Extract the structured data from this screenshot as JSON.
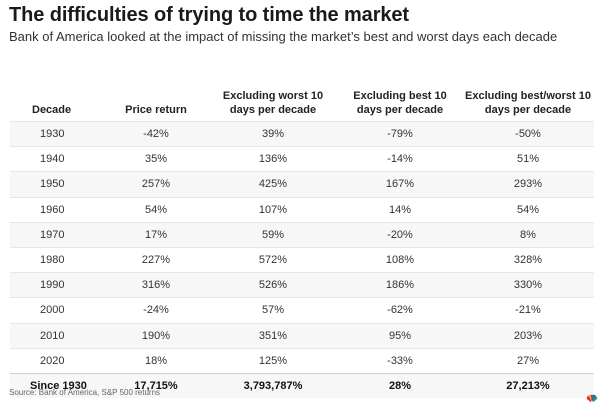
{
  "header": {
    "title": "The difficulties of trying to time the market",
    "subtitle": "Bank of America looked at the impact of missing the market’s best and worst days each decade"
  },
  "table": {
    "columns": [
      "Decade",
      "Price return",
      "Excluding worst 10 days per decade",
      "Excluding best 10 days per decade",
      "Excluding best/worst 10 days per decade"
    ],
    "rows": [
      [
        "1930",
        "-42%",
        "39%",
        "-79%",
        "-50%"
      ],
      [
        "1940",
        "35%",
        "136%",
        "-14%",
        "51%"
      ],
      [
        "1950",
        "257%",
        "425%",
        "167%",
        "293%"
      ],
      [
        "1960",
        "54%",
        "107%",
        "14%",
        "54%"
      ],
      [
        "1970",
        "17%",
        "59%",
        "-20%",
        "8%"
      ],
      [
        "1980",
        "227%",
        "572%",
        "108%",
        "328%"
      ],
      [
        "1990",
        "316%",
        "526%",
        "186%",
        "330%"
      ],
      [
        "2000",
        "-24%",
        "57%",
        "-62%",
        "-21%"
      ],
      [
        "2010",
        "190%",
        "351%",
        "95%",
        "203%"
      ],
      [
        "2020",
        "18%",
        "125%",
        "-33%",
        "27%"
      ]
    ],
    "total": [
      "Since 1930",
      "17,715%",
      "3,793,787%",
      "28%",
      "27,213%"
    ]
  },
  "footer": {
    "source": "Source: Bank of America, S&P 500 returns",
    "logo_icon": "peacock-logo-icon"
  }
}
